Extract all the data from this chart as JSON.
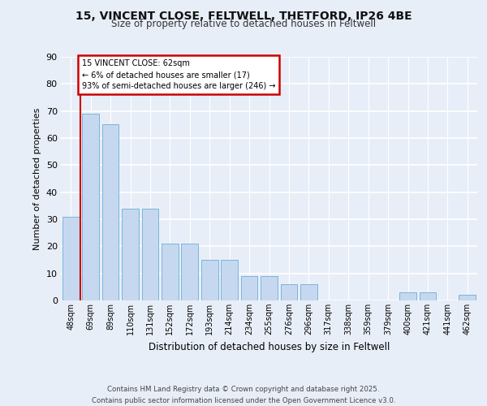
{
  "title_line1": "15, VINCENT CLOSE, FELTWELL, THETFORD, IP26 4BE",
  "title_line2": "Size of property relative to detached houses in Feltwell",
  "xlabel": "Distribution of detached houses by size in Feltwell",
  "ylabel": "Number of detached properties",
  "categories": [
    "48sqm",
    "69sqm",
    "89sqm",
    "110sqm",
    "131sqm",
    "152sqm",
    "172sqm",
    "193sqm",
    "214sqm",
    "234sqm",
    "255sqm",
    "276sqm",
    "296sqm",
    "317sqm",
    "338sqm",
    "359sqm",
    "379sqm",
    "400sqm",
    "421sqm",
    "441sqm",
    "462sqm"
  ],
  "values": [
    31,
    69,
    65,
    34,
    34,
    21,
    21,
    15,
    15,
    9,
    9,
    6,
    6,
    0,
    0,
    0,
    0,
    3,
    3,
    0,
    2
  ],
  "bar_color": "#c5d8f0",
  "bar_edge_color": "#6aaed6",
  "annotation_box_color": "#ffffff",
  "annotation_border_color": "#cc0000",
  "vline_color": "#cc0000",
  "annotation_title": "15 VINCENT CLOSE: 62sqm",
  "annotation_line2": "← 6% of detached houses are smaller (17)",
  "annotation_line3": "93% of semi-detached houses are larger (246) →",
  "ylim": [
    0,
    90
  ],
  "yticks": [
    0,
    10,
    20,
    30,
    40,
    50,
    60,
    70,
    80,
    90
  ],
  "bg_color": "#e8eef8",
  "fig_bg_color": "#e8eef8",
  "footer": "Contains HM Land Registry data © Crown copyright and database right 2025.\nContains public sector information licensed under the Open Government Licence v3.0.",
  "vline_x_index": 0.5
}
